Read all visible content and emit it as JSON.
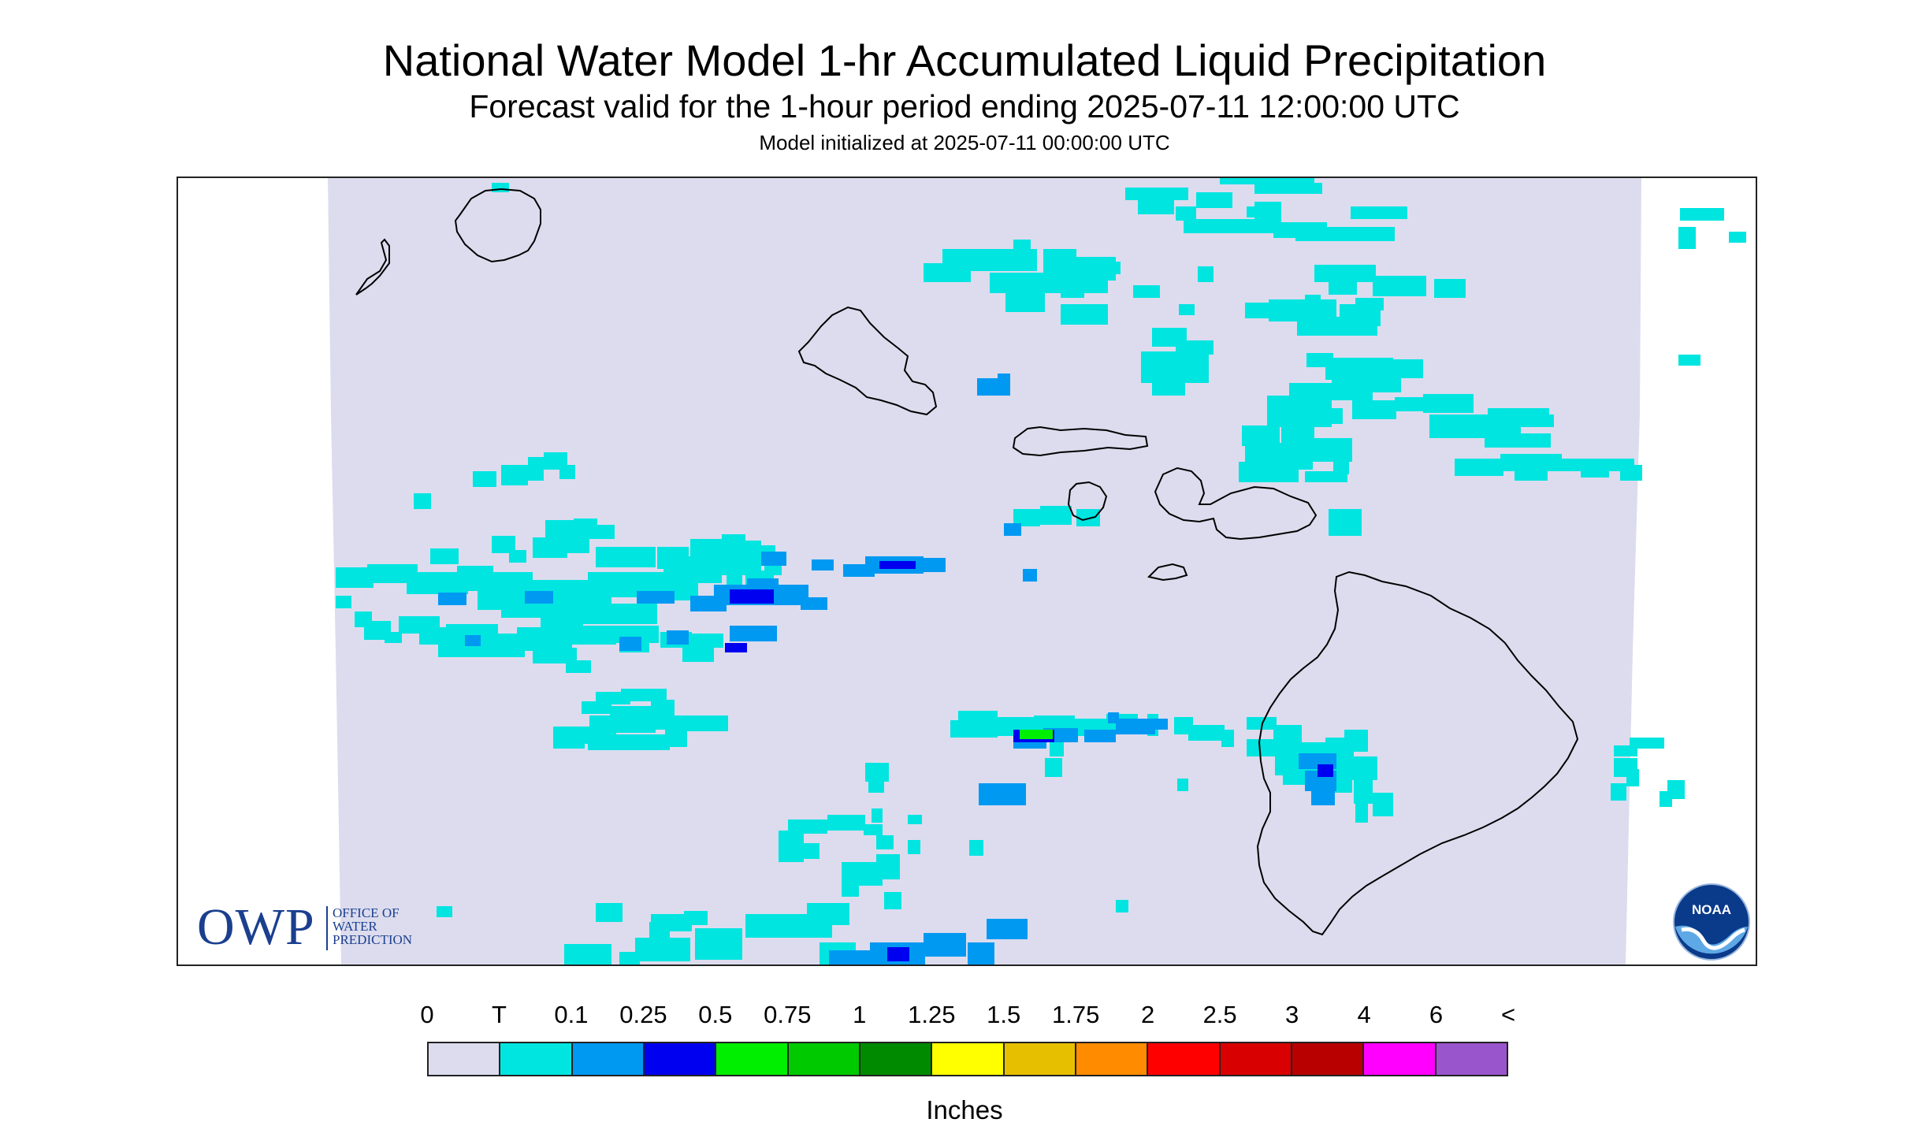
{
  "title": "National Water Model 1-hr Accumulated Liquid Precipitation",
  "subtitle": "Forecast valid for the 1-hour period ending 2025-07-11 12:00:00 UTC",
  "init_line": "Model initialized at 2025-07-11 00:00:00 UTC",
  "owp_logo": {
    "letters": "OWP",
    "line1": "OFFICE OF",
    "line2": "WATER",
    "line3": "PREDICTION"
  },
  "noaa_logo": {
    "text": "NOAA"
  },
  "legend": {
    "units": "Inches",
    "labels": [
      "0",
      "T",
      "0.1",
      "0.25",
      "0.5",
      "0.75",
      "1",
      "1.25",
      "1.5",
      "1.75",
      "2",
      "2.5",
      "3",
      "4",
      "6",
      "<"
    ],
    "colors": [
      "#dcdcee",
      "#00e5e0",
      "#0099f2",
      "#0000f0",
      "#00ee00",
      "#00c900",
      "#008a00",
      "#ffff00",
      "#e6bf00",
      "#ff8c00",
      "#ff0000",
      "#d80000",
      "#b80000",
      "#ff00ff",
      "#9955cc"
    ]
  },
  "colors": {
    "no_data_bg": "#dcdcee",
    "trace": "#00e5e0",
    "light": "#0099f2",
    "moderate": "#0000f0",
    "heavy": "#00ee00",
    "coastline": "#000000",
    "owp_blue": "#1b3f8f",
    "noaa_blue": "#0a3a8a"
  }
}
